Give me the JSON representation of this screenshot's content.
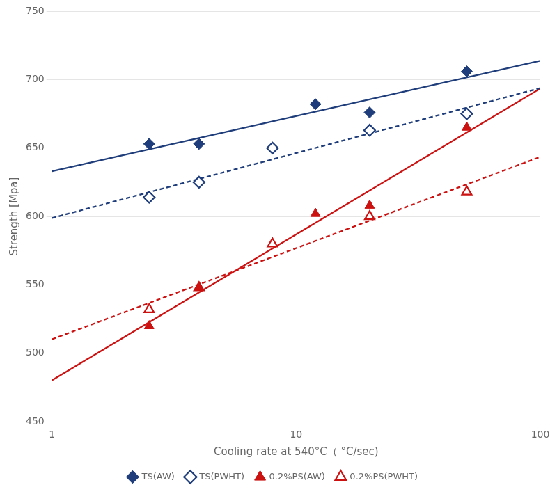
{
  "chart_data": {
    "type": "scatter",
    "xlabel": "Cooling rate at 540°C（ °C/sec)",
    "ylabel": "Strength [Mpa]",
    "log": "x",
    "xlim": [
      1,
      100
    ],
    "xticks": [
      1,
      10,
      100
    ],
    "ylim": [
      450,
      750
    ],
    "yticks": [
      450,
      500,
      550,
      600,
      650,
      700,
      750
    ],
    "grid": "y",
    "legend": "bottom",
    "series": [
      {
        "type": "line",
        "line_style": "solid",
        "color": "#1e3d7a",
        "x": [
          1,
          100
        ],
        "values": [
          633.0,
          713.72
        ]
      },
      {
        "type": "line",
        "line_style": "dashed",
        "color": "#1e3d7a",
        "x": [
          1,
          100
        ],
        "values": [
          598.86,
          693.78
        ]
      },
      {
        "type": "line",
        "line_style": "solid",
        "color": "#cc1111",
        "x": [
          1,
          100
        ],
        "values": [
          480.34,
          693.48
        ]
      },
      {
        "type": "line",
        "line_style": "dashed",
        "color": "#cc1111",
        "x": [
          1,
          100
        ],
        "values": [
          510.27,
          643.52
        ]
      },
      {
        "name": "TS(AW)",
        "type": "scatter",
        "marker": "diamond",
        "color": "#1e3d7a",
        "x": [
          2.5,
          4.0,
          12.0,
          20.0,
          50.0
        ],
        "values": [
          653,
          653,
          682,
          676,
          706
        ]
      },
      {
        "name": "TS(PWHT)",
        "type": "scatter",
        "marker": "open_diamond",
        "color": "#1e3d7a",
        "x": [
          2.5,
          4.0,
          8.0,
          20.0,
          50.0
        ],
        "values": [
          614,
          625,
          650,
          663,
          675
        ]
      },
      {
        "name": "0.2%PS(AW)",
        "type": "scatter",
        "marker": "triangle",
        "color": "#cc1111",
        "x": [
          2.5,
          4.0,
          12.0,
          20.0,
          50.0
        ],
        "values": [
          520,
          548,
          602,
          608,
          665
        ]
      },
      {
        "name": "0.2%PS(PWHT)",
        "type": "scatter",
        "marker": "open_triangle",
        "color": "#cc1111",
        "x": [
          2.5,
          4.0,
          8.0,
          20.0,
          50.0
        ],
        "values": [
          532,
          548,
          580,
          600,
          618
        ]
      }
    ]
  }
}
